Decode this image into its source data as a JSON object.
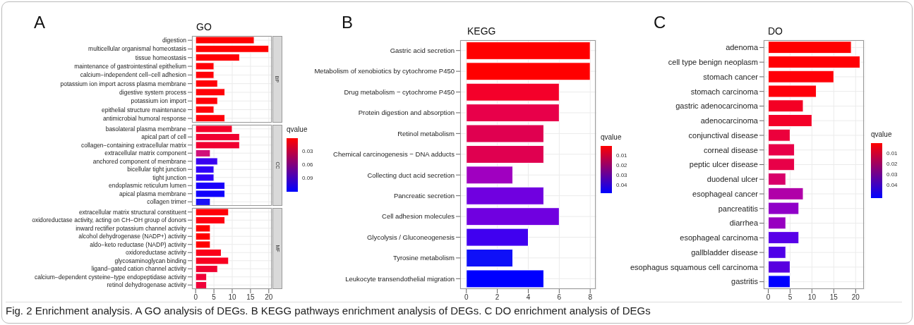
{
  "chart_data": [
    {
      "type": "bar",
      "orientation": "horizontal",
      "title": "GO",
      "y2label": "BP",
      "annotations": [
        "A"
      ],
      "grid": true,
      "tick_labels": "y",
      "xlim": [
        -1,
        21
      ],
      "xticks": [
        0,
        5,
        10,
        15,
        20
      ],
      "categories": [
        "digestion",
        "multicellular organismal homeostasis",
        "tissue homeostasis",
        "maintenance of gastrointestinal epithelium",
        "calcium−independent cell−cell adhesion",
        "potassium ion import across plasma membrane",
        "digestive system process",
        "potassium ion import",
        "epithelial structure maintenance",
        "antimicrobial humoral response"
      ],
      "values": [
        16,
        20,
        12,
        5,
        5,
        6,
        8,
        6,
        5,
        8
      ],
      "colors": [
        "#ff0000",
        "#ff0000",
        "#ff0004",
        "#ff0008",
        "#ff0008",
        "#ff0008",
        "#ff0008",
        "#ff0008",
        "#ff000a",
        "#ff000a"
      ]
    },
    {
      "type": "bar",
      "orientation": "horizontal",
      "y2label": "CC",
      "grid": true,
      "tick_labels": "y",
      "xlim": [
        -1,
        21
      ],
      "xticks": [
        0,
        5,
        10,
        15,
        20
      ],
      "clabel": "qvalue",
      "clim": [
        0,
        0.12
      ],
      "cticks": [
        0.03,
        0.06,
        0.09
      ],
      "categories": [
        "basolateral plasma membrane",
        "apical part of cell",
        "collagen−containing extracellular matrix",
        "extracellular matrix component",
        "anchored component of membrane",
        "bicellular tight junction",
        "tight junction",
        "endoplasmic reticulum lumen",
        "apical plasma membrane",
        "collagen trimer"
      ],
      "values": [
        10,
        12,
        12,
        4,
        6,
        5,
        5,
        8,
        8,
        4
      ],
      "colors": [
        "#f5002a",
        "#f00030",
        "#f00030",
        "#d0107a",
        "#3a00f0",
        "#3000f8",
        "#3000f8",
        "#1a00fa",
        "#1000fc",
        "#1a10f5"
      ]
    },
    {
      "type": "bar",
      "orientation": "horizontal",
      "y2label": "MF",
      "grid": true,
      "xlim": [
        -1,
        21
      ],
      "xticks": [
        0,
        5,
        10,
        15,
        20
      ],
      "categories": [
        "extracellular matrix structural constituent",
        "oxidoreductase activity, acting on CH−OH group of donors",
        "inward rectifier potassium channel activity",
        "alcohol dehydrogenase (NADP+) activity",
        "aldo−keto reductase (NADP) activity",
        "oxidoreductase activity",
        "glycosaminoglycan binding",
        "ligand−gated cation channel activity",
        "calcium−dependent cysteine−type endopeptidase activity",
        "retinol dehydrogenase activity"
      ],
      "values": [
        9,
        8,
        4,
        4,
        4,
        7,
        9,
        6,
        3,
        3
      ],
      "colors": [
        "#ff0008",
        "#ff0010",
        "#ff0000",
        "#ff0000",
        "#ff0000",
        "#fa0018",
        "#f80020",
        "#f00030",
        "#f00038",
        "#f00038"
      ]
    },
    {
      "type": "bar",
      "orientation": "horizontal",
      "title": "KEGG",
      "annotations": [
        "B"
      ],
      "grid": true,
      "xlim": [
        -0.4,
        8.4
      ],
      "xticks": [
        0,
        2,
        4,
        6,
        8
      ],
      "clabel": "qvalue",
      "clim": [
        0,
        0.048
      ],
      "cticks": [
        0.01,
        0.02,
        0.03,
        0.04
      ],
      "categories": [
        "Gastric acid secretion",
        "Metabolism of xenobiotics by cytochrome P450",
        "Drug metabolism − cytochrome P450",
        "Protein digestion and absorption",
        "Retinol metabolism",
        "Chemical carcinogenesis − DNA adducts",
        "Collecting duct acid secretion",
        "Pancreatic secretion",
        "Cell adhesion molecules",
        "Glycolysis / Gluconeogenesis",
        "Tyrosine metabolism",
        "Leukocyte transendothelial migration"
      ],
      "values": [
        8,
        8,
        6,
        6,
        5,
        5,
        3,
        5,
        6,
        4,
        3,
        5
      ],
      "colors": [
        "#ff0000",
        "#ff0000",
        "#f4002a",
        "#e8004a",
        "#e00050",
        "#e00050",
        "#a000c0",
        "#7000e0",
        "#7000e0",
        "#4000f0",
        "#0f10f8",
        "#0000ff"
      ]
    },
    {
      "type": "bar",
      "orientation": "horizontal",
      "title": "DO",
      "annotations": [
        "C",
        "Fig. 2  Enrichment analysis. A GO analysis of DEGs. B KEGG pathways enrichment analysis of DEGs. C DO enrichment analysis of DEGs"
      ],
      "grid": true,
      "xlim": [
        -1.05,
        22.05
      ],
      "xticks": [
        0,
        5,
        10,
        15,
        20
      ],
      "clabel": "qvalue",
      "clim": [
        0,
        0.052
      ],
      "cticks": [
        0.01,
        0.02,
        0.03,
        0.04
      ],
      "categories": [
        "adenoma",
        "cell type benign neoplasm",
        "stomach cancer",
        "stomach carcinoma",
        "gastric adenocarcinoma",
        "adenocarcinoma",
        "conjunctival disease",
        "corneal disease",
        "peptic ulcer disease",
        "duodenal ulcer",
        "esophageal cancer",
        "pancreatitis",
        "diarrhea",
        "esophageal carcinoma",
        "gallbladder disease",
        "esophagus squamous cell carcinoma",
        "gastritis"
      ],
      "values": [
        19,
        21,
        15,
        11,
        8,
        10,
        5,
        6,
        6,
        4,
        8,
        7,
        4,
        7,
        4,
        5,
        5
      ],
      "colors": [
        "#ff0000",
        "#ff0004",
        "#ff0008",
        "#ff000a",
        "#f40024",
        "#f40028",
        "#ec003c",
        "#e80048",
        "#e80048",
        "#d8006a",
        "#b000a8",
        "#9000c8",
        "#9800c0",
        "#5800e8",
        "#5000e8",
        "#5800e0",
        "#0000ff"
      ]
    }
  ]
}
